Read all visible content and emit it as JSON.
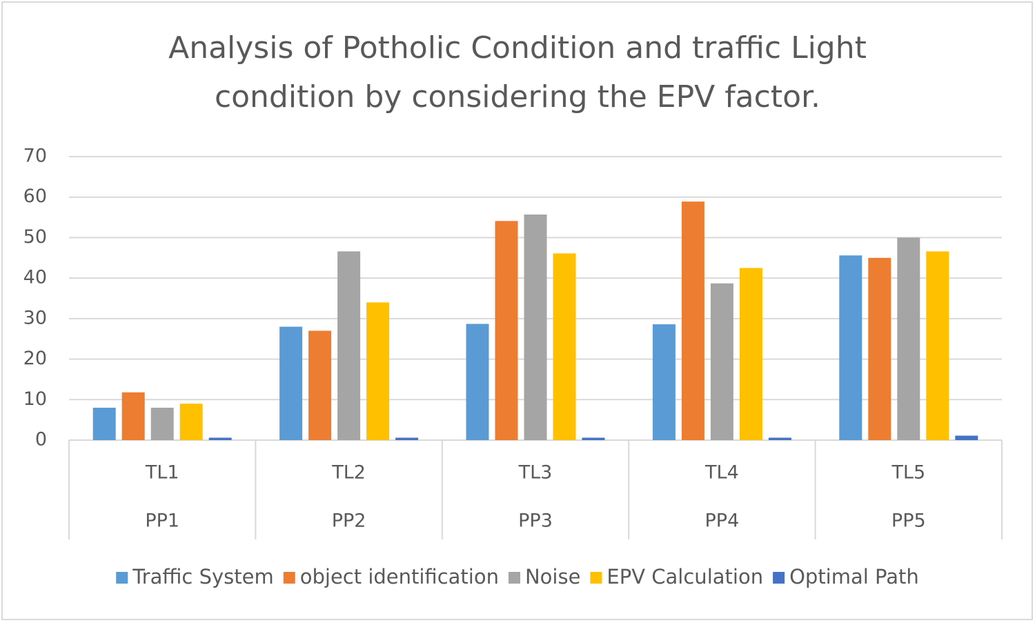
{
  "chart_data": {
    "type": "bar",
    "title": [
      "Analysis of Potholic Condition and traffic Light",
      "condition by considering the  EPV factor."
    ],
    "categories": [
      "TL1",
      "TL2",
      "TL3",
      "TL4",
      "TL5"
    ],
    "category_groups": [
      "PP1",
      "PP2",
      "PP3",
      "PP4",
      "PP5"
    ],
    "series": [
      {
        "name": "Traffic System",
        "color": "#5b9bd5",
        "values": [
          8,
          28,
          28.7,
          28.6,
          45.6
        ]
      },
      {
        "name": "object identification",
        "color": "#ed7d31",
        "values": [
          11.8,
          27,
          54.1,
          58.9,
          45
        ]
      },
      {
        "name": "Noise",
        "color": "#a5a5a5",
        "values": [
          8,
          46.6,
          55.7,
          38.7,
          50
        ]
      },
      {
        "name": "EPV Calculation",
        "color": "#ffc000",
        "values": [
          9,
          34,
          46.1,
          42.5,
          46.6
        ]
      },
      {
        "name": "Optimal Path",
        "color": "#4472c4",
        "values": [
          0.6,
          0.6,
          0.6,
          0.6,
          1.1
        ]
      }
    ],
    "ylim": [
      0,
      70
    ],
    "yticks": [
      0,
      10,
      20,
      30,
      40,
      50,
      60,
      70
    ],
    "grid": true,
    "legend": "bottom"
  }
}
